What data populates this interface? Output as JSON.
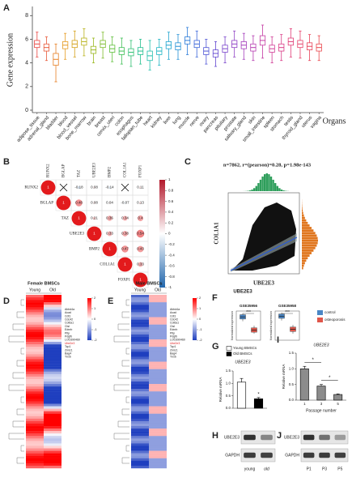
{
  "panel_labels": [
    "A",
    "B",
    "C",
    "D",
    "E",
    "F",
    "G",
    "H",
    "I",
    "J"
  ],
  "chart_data": [
    {
      "type": "box",
      "ylabel": "Gene expression",
      "xlabel": "Organs",
      "categories": [
        "adipose_tissue",
        "adrenal_gland",
        "bladder",
        "blood",
        "blood_vessel",
        "bone_marrow",
        "brain",
        "breast",
        "cervix_uteri",
        "colon",
        "esophagus",
        "fallopian_tube",
        "heart",
        "kidney",
        "liver",
        "lung",
        "muscle",
        "nerve",
        "ovary",
        "pancreas",
        "pituitary",
        "prostate",
        "salivary_gland",
        "skin",
        "small_intestine",
        "spleen",
        "stomach",
        "testis",
        "thyroid_gland",
        "uterus",
        "vagina"
      ],
      "median": [
        5.6,
        5.3,
        4.3,
        5.5,
        5.6,
        5.8,
        5.1,
        5.6,
        5.2,
        5.0,
        4.9,
        5.0,
        4.6,
        5.0,
        5.5,
        5.4,
        5.9,
        5.6,
        5.0,
        4.8,
        5.2,
        5.6,
        5.5,
        5.3,
        5.9,
        5.2,
        5.3,
        5.8,
        5.6,
        5.4,
        5.3
      ],
      "q1": [
        5.3,
        5.0,
        3.8,
        5.2,
        5.3,
        5.5,
        4.8,
        5.3,
        4.9,
        4.7,
        4.6,
        4.7,
        4.2,
        4.7,
        5.2,
        5.1,
        5.6,
        5.3,
        4.7,
        4.5,
        4.9,
        5.3,
        5.2,
        5.0,
        5.5,
        4.9,
        5.0,
        5.5,
        5.3,
        5.1,
        5.0
      ],
      "q3": [
        5.9,
        5.6,
        4.8,
        5.8,
        5.9,
        6.1,
        5.4,
        5.9,
        5.5,
        5.3,
        5.2,
        5.3,
        5.0,
        5.3,
        5.8,
        5.7,
        6.2,
        5.9,
        5.3,
        5.1,
        5.5,
        5.9,
        5.8,
        5.6,
        6.3,
        5.5,
        5.6,
        6.1,
        5.9,
        5.7,
        5.6
      ],
      "whislo": [
        4.5,
        4.2,
        2.4,
        4.3,
        4.5,
        4.6,
        4.0,
        4.4,
        4.1,
        3.9,
        3.7,
        3.9,
        3.4,
        3.8,
        4.3,
        4.3,
        4.7,
        4.5,
        3.9,
        3.7,
        4.0,
        4.5,
        4.3,
        4.2,
        4.4,
        4.0,
        4.2,
        4.5,
        4.4,
        4.2,
        4.2
      ],
      "whishi": [
        6.6,
        6.2,
        5.6,
        6.5,
        6.7,
        6.9,
        6.1,
        6.6,
        6.2,
        6.1,
        5.9,
        6.0,
        5.9,
        6.0,
        6.6,
        6.4,
        7.0,
        6.7,
        6.0,
        5.8,
        6.2,
        6.7,
        6.5,
        6.3,
        7.2,
        6.2,
        6.4,
        6.9,
        6.7,
        6.4,
        6.3
      ],
      "colors": [
        "#e8433f",
        "#e85a3a",
        "#e67e22",
        "#e69b22",
        "#d4a017",
        "#b8b21a",
        "#9bb81f",
        "#7dbb2a",
        "#5fbf3a",
        "#3fbf55",
        "#2fbf72",
        "#22bf8f",
        "#1fbfac",
        "#1fb5c4",
        "#1fa3cf",
        "#2290d6",
        "#2b7bd9",
        "#3b66d9",
        "#4f55d6",
        "#6449d1",
        "#7a44cc",
        "#8f40c4",
        "#a33dbb",
        "#b53bb0",
        "#c43aa3",
        "#d03a95",
        "#d93b86",
        "#e03d77",
        "#e54068",
        "#e8435a",
        "#e9464c"
      ],
      "ylim": [
        0,
        8.5
      ],
      "yticks": [
        0,
        2,
        4,
        6,
        8
      ]
    },
    {
      "type": "corrplot",
      "genes": [
        "RUNX2",
        "BGLAP",
        "TAZ",
        "UBE2E3",
        "BMP2",
        "COL1A1",
        "FOXP1"
      ],
      "matrix": [
        [
          1,
          null,
          -0.18,
          0.08,
          -0.14,
          null,
          0.11
        ],
        [
          1,
          0.48,
          0.08,
          0.04,
          -0.07,
          0.13
        ],
        [
          1,
          0.21,
          0.36,
          0.34,
          0.4
        ],
        [
          1,
          0.33,
          0.38,
          0.54
        ],
        [
          1,
          0.47,
          0.43
        ],
        [
          1,
          0.33
        ],
        [
          1
        ]
      ],
      "positive_color": "#e31a1c",
      "negative_color": "#2166ac",
      "colorbar_lim": [
        -1,
        1
      ],
      "colorbar_ticks": [
        1,
        0.8,
        0.6,
        0.4,
        0.2,
        0,
        -0.2,
        -0.4,
        -0.6,
        -0.8,
        -1
      ]
    },
    {
      "type": "scatter_summary",
      "title": "n=7862, r=(pearson)=0.28, p=1.98e-143",
      "xlabel": "UBE2E3",
      "ylabel": "COL1A1"
    },
    {
      "type": "boxgroup",
      "title": "UBE2E3",
      "ylabel": "Normalized expression",
      "ylim": [
        6,
        10
      ],
      "legend": [
        {
          "name": "control",
          "color": "#4a86c5"
        },
        {
          "name": "osteoporosis",
          "color": "#e0564a"
        }
      ],
      "panels": [
        {
          "title": "GSE35956",
          "sig": "***",
          "median": [
            9.2,
            7.4
          ],
          "q1": [
            8.9,
            7.1
          ],
          "q3": [
            9.5,
            7.7
          ],
          "whislo": [
            8.6,
            6.9
          ],
          "whishi": [
            9.7,
            8.0
          ]
        },
        {
          "title": "GSE35958",
          "sig": "***",
          "median": [
            9.3,
            7.5
          ],
          "q1": [
            9.0,
            7.2
          ],
          "q3": [
            9.6,
            7.8
          ],
          "whislo": [
            8.7,
            6.9
          ],
          "whishi": [
            9.8,
            8.1
          ]
        }
      ]
    },
    {
      "type": "bar",
      "title": "UBE2E3",
      "ylabel": "Relative mRNA",
      "legend": true,
      "categories": [
        "Young BMSCs",
        "Old BMSCs"
      ],
      "values": [
        1.05,
        0.38
      ],
      "errors": [
        0.15,
        0.05
      ],
      "colors": [
        "#ffffff",
        "#000000"
      ],
      "sig": [
        "*"
      ],
      "ylim": [
        0,
        1.5
      ],
      "yticks": [
        {
          "value": 0,
          "label": "0.0"
        },
        {
          "value": 0.5,
          "label": "0.5"
        },
        {
          "value": 1,
          "label": "1.0"
        },
        {
          "value": 1.5,
          "label": "1.5"
        }
      ]
    },
    {
      "type": "bar",
      "title": "UBE2E3",
      "ylabel": "Relative mRNA",
      "xlabel": "Passage number",
      "legend": false,
      "categories": [
        "1",
        "3",
        "5"
      ],
      "values": [
        1.0,
        0.45,
        0.18
      ],
      "errors": [
        0.08,
        0.05,
        0.02
      ],
      "colors": [
        "#8c8c8c",
        "#8c8c8c",
        "#8c8c8c"
      ],
      "sig": [
        "*",
        "*"
      ],
      "ylim": [
        0,
        1.5
      ],
      "yticks": [
        {
          "value": 0,
          "label": "0.0"
        },
        {
          "value": 0.5,
          "label": "0.5"
        },
        {
          "value": 1,
          "label": "1.0"
        },
        {
          "value": 1.5,
          "label": "1.5"
        }
      ]
    }
  ],
  "heatmaps": [
    {
      "title": "Female BMSCs",
      "columns": [
        "Young",
        "Old"
      ],
      "genes": [
        "Abhd4a",
        "Acad",
        "Cdt1",
        "Cdc42",
        "Col6a1",
        "Ctsl",
        "Ednrb",
        "Pltp",
        "Pdgfb",
        "LOC690460",
        "Ube2e3",
        "Tcp1",
        "Zmiz1",
        "Bag4",
        "Tnxb"
      ],
      "highlight_index": 10,
      "colorbar_ticks": [
        2,
        1,
        0,
        -1,
        -2
      ]
    },
    {
      "title": "Male BMSCs",
      "columns": [
        "Young",
        "Old"
      ],
      "genes": [
        "Abhd4a",
        "Acad",
        "Cdt1",
        "Cdc42",
        "Col6a1",
        "Ctsl",
        "Ednrb",
        "Pltp",
        "Pdgfb",
        "LOC690460",
        "Ube2e3",
        "Tcp1",
        "Zmiz1",
        "Bag4",
        "Tnxb"
      ],
      "highlight_index": 10,
      "colorbar_ticks": [
        2,
        1,
        0,
        -1,
        -2
      ]
    }
  ],
  "blots": [
    {
      "rows": [
        "UBE2E3",
        "GAPDH"
      ],
      "lanes": [
        "young",
        "old"
      ]
    },
    {
      "rows": [
        "UBE2E3",
        "GAPDH"
      ],
      "lanes": [
        "P1",
        "P3",
        "P5"
      ]
    }
  ]
}
